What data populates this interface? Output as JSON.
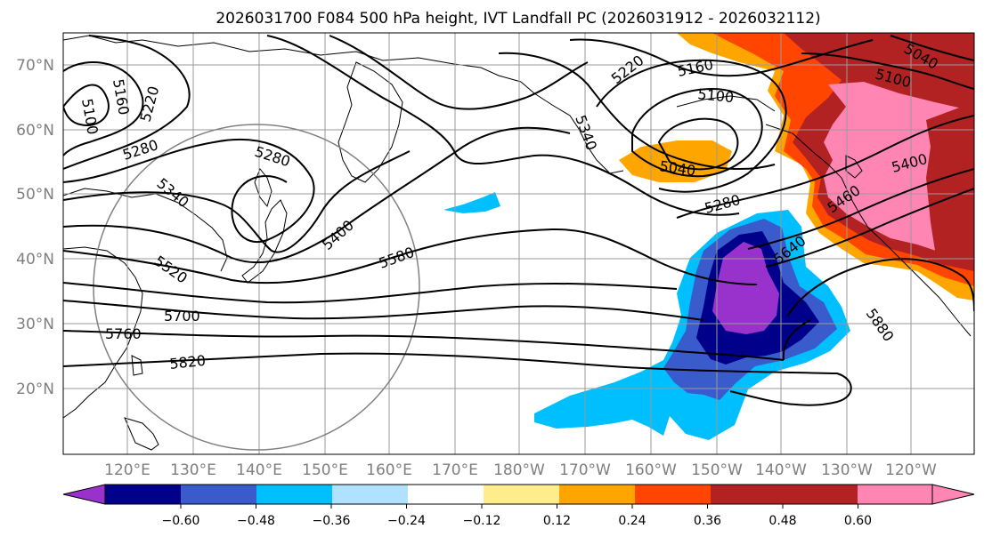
{
  "title": "2026031700 F084 500 hPa height, IVT Landfall PC (2026031912 - 2026032112)",
  "lat_labels": [
    "70°N",
    "60°N",
    "50°N",
    "40°N",
    "30°N",
    "20°N"
  ],
  "lon_labels": [
    "120°E",
    "130°E",
    "140°E",
    "150°E",
    "160°E",
    "170°E",
    "180°W",
    "170°W",
    "160°W",
    "150°W",
    "140°W",
    "130°W",
    "120°W"
  ],
  "colorbar": {
    "colors": [
      "#9932cc",
      "#00008b",
      "#3a5bcc",
      "#00bfff",
      "#b0e2ff",
      "#ffffff",
      "#ffec8b",
      "#ffa500",
      "#ff4500",
      "#b22222",
      "#ff85b3"
    ],
    "tick_labels": [
      "−0.60",
      "−0.48",
      "−0.36",
      "−0.24",
      "−0.12",
      "0.12",
      "0.24",
      "0.36",
      "0.48",
      "0.60"
    ],
    "extend": "both"
  },
  "contour_labels": [
    "5100",
    "5160",
    "5220",
    "5280",
    "5340",
    "5280",
    "5400",
    "5580",
    "5520",
    "5700",
    "5760",
    "5820",
    "5340",
    "5220",
    "5160",
    "5100",
    "5040",
    "5280",
    "5640",
    "5880",
    "5400",
    "5460",
    "5040",
    "5100"
  ]
}
